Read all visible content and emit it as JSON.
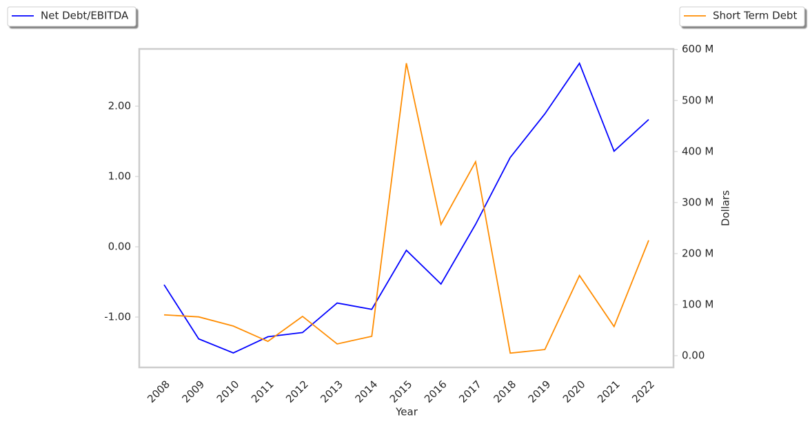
{
  "chart_data": {
    "type": "line",
    "x_label": "Year",
    "y2_label": "Dollars",
    "categories": [
      "2008",
      "2009",
      "2010",
      "2011",
      "2012",
      "2013",
      "2014",
      "2015",
      "2016",
      "2017",
      "2018",
      "2019",
      "2020",
      "2021",
      "2022"
    ],
    "series": [
      {
        "name": "Net Debt/EBITDA",
        "color": "#0000ff",
        "axis": "y",
        "legend": "upper left",
        "values": [
          -0.54,
          -1.31,
          -1.51,
          -1.28,
          -1.22,
          -0.8,
          -0.89,
          -0.05,
          -0.53,
          0.32,
          1.27,
          1.89,
          2.61,
          1.36,
          1.81
        ]
      },
      {
        "name": "Short Term Debt",
        "color": "#ff8c00",
        "axis": "y2",
        "legend": "upper right",
        "values": [
          80000000,
          76000000,
          58000000,
          28000000,
          77000000,
          23000000,
          38000000,
          573000000,
          257000000,
          380000000,
          5000000,
          12000000,
          157000000,
          57000000,
          226000000
        ]
      }
    ],
    "ylim": [
      -1.716,
      2.814
    ],
    "yticks": [
      {
        "value": -1,
        "label": "-1.00"
      },
      {
        "value": 0,
        "label": "0.00"
      },
      {
        "value": 1,
        "label": "1.00"
      },
      {
        "value": 2,
        "label": "2.00"
      }
    ],
    "y2lim": [
      -23000000,
      601000000
    ],
    "y2ticks": [
      {
        "value": 0,
        "label": "0.00"
      },
      {
        "value": 100000000,
        "label": "100 M"
      },
      {
        "value": 200000000,
        "label": "200 M"
      },
      {
        "value": 300000000,
        "label": "300 M"
      },
      {
        "value": 400000000,
        "label": "400 M"
      },
      {
        "value": 500000000,
        "label": "500 M"
      },
      {
        "value": 600000000,
        "label": "600 M"
      }
    ],
    "grid": false
  }
}
